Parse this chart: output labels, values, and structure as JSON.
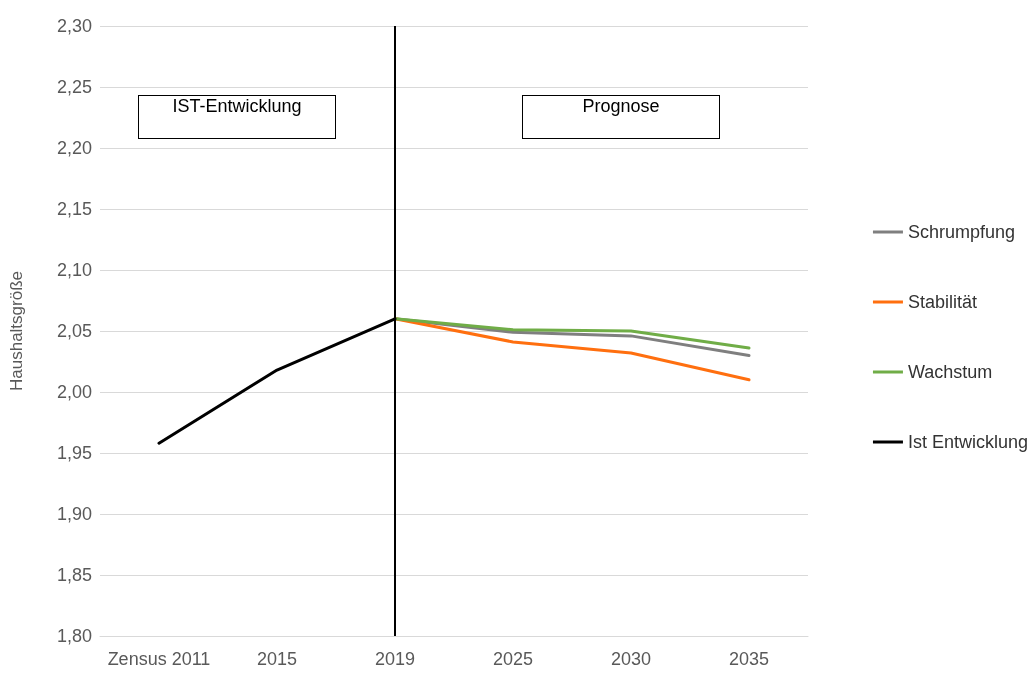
{
  "chart_data": {
    "type": "line",
    "ylabel": "Haushaltsgröße",
    "categories": [
      "Zensus 2011",
      "2015",
      "2019",
      "2025",
      "2030",
      "2035"
    ],
    "series": [
      {
        "name": "Schrumpfung",
        "color": "#7f7f7f",
        "values": [
          null,
          null,
          2.06,
          2.049,
          2.046,
          2.03
        ]
      },
      {
        "name": "Stabilität",
        "color": "#ff6f0f",
        "values": [
          null,
          null,
          2.06,
          2.041,
          2.032,
          2.01
        ]
      },
      {
        "name": "Wachstum",
        "color": "#70ad47",
        "values": [
          null,
          null,
          2.06,
          2.051,
          2.05,
          2.036
        ]
      },
      {
        "name": "Ist Entwicklung",
        "color": "#000000",
        "values": [
          1.958,
          2.018,
          2.06,
          null,
          null,
          null
        ]
      }
    ],
    "ylim": [
      1.8,
      2.3
    ],
    "yticks": [
      {
        "value": 1.8,
        "label": "1,80"
      },
      {
        "value": 1.85,
        "label": "1,85"
      },
      {
        "value": 1.9,
        "label": "1,90"
      },
      {
        "value": 1.95,
        "label": "1,95"
      },
      {
        "value": 2.0,
        "label": "2,00"
      },
      {
        "value": 2.05,
        "label": "2,05"
      },
      {
        "value": 2.1,
        "label": "2,10"
      },
      {
        "value": 2.15,
        "label": "2,15"
      },
      {
        "value": 2.2,
        "label": "2,20"
      },
      {
        "value": 2.25,
        "label": "2,25"
      },
      {
        "value": 2.3,
        "label": "2,30"
      }
    ],
    "ref_lines": [
      {
        "axis": "x",
        "value": "2019",
        "color": "#000000"
      }
    ],
    "annotations": [
      "IST-Entwicklung",
      "Prognose"
    ],
    "grid": "y",
    "legend": "right",
    "marker": "none",
    "line_style": "solid"
  }
}
